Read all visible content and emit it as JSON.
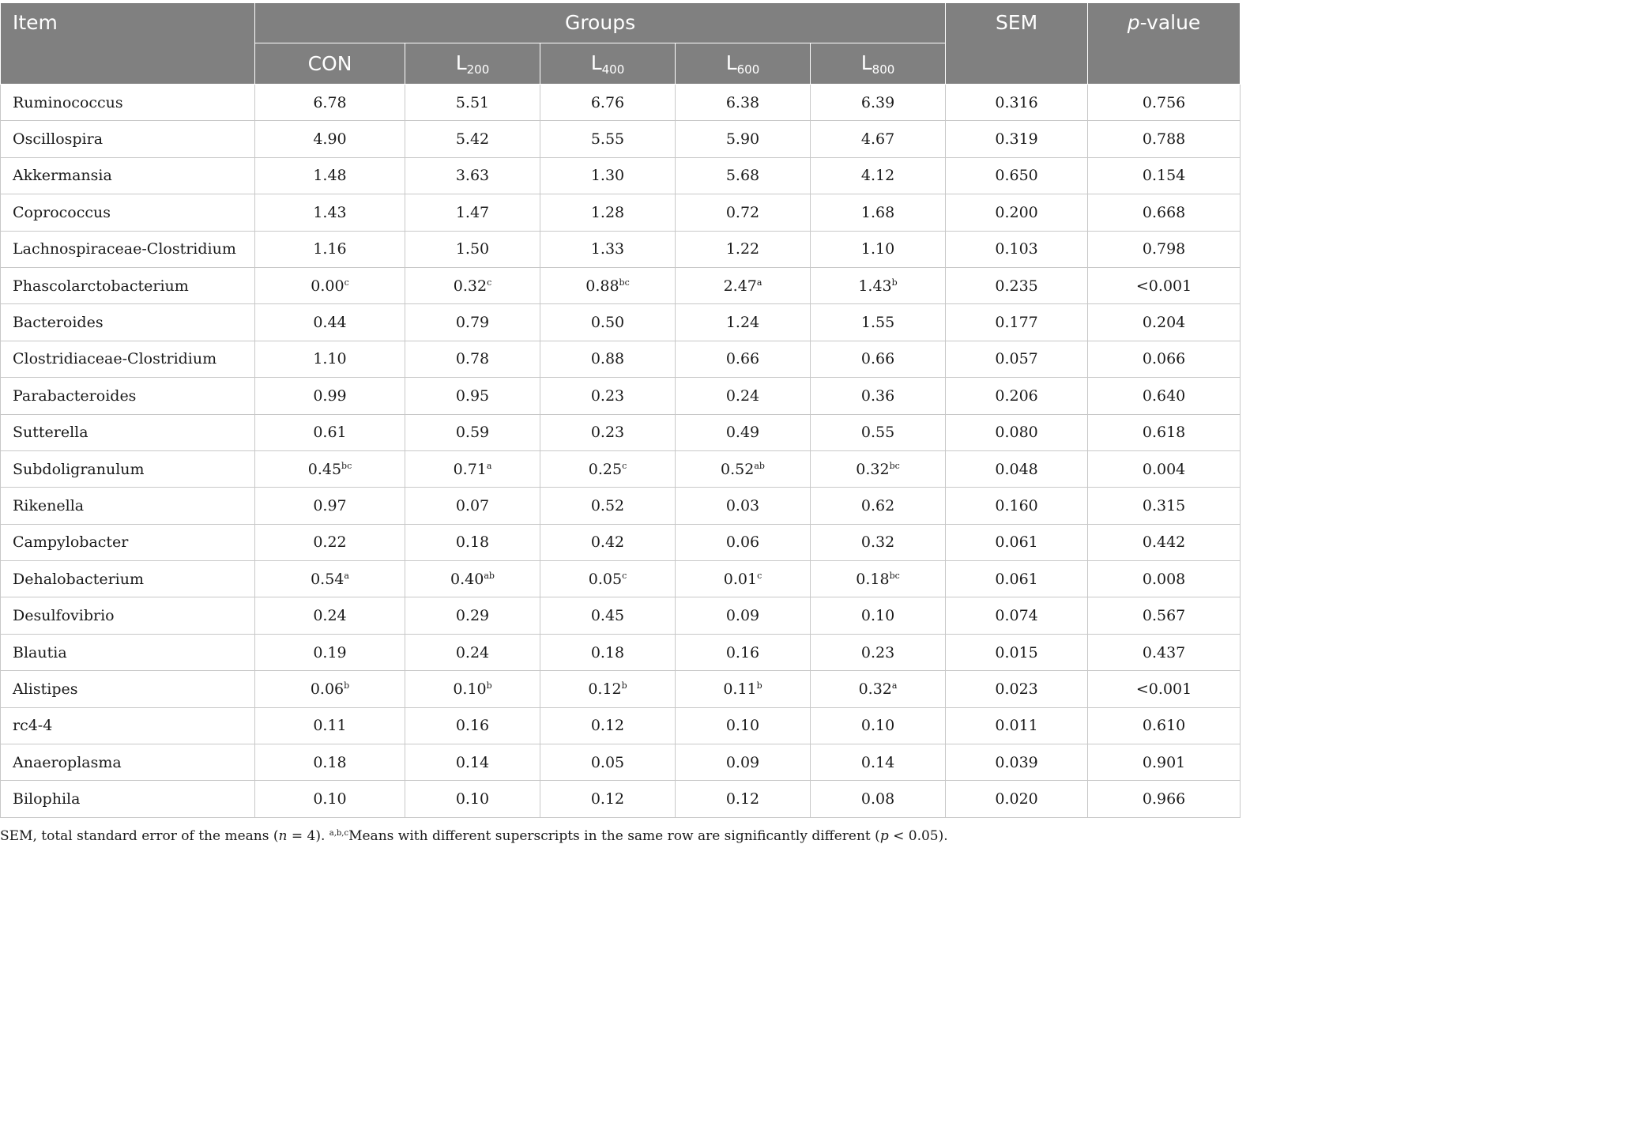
{
  "header": {
    "item": "Item",
    "groups": "Groups",
    "sem": "SEM",
    "pvalue_italic": "p",
    "pvalue_rest": "-value",
    "con": "CON",
    "subgroups": [
      {
        "base": "L",
        "sub": "200"
      },
      {
        "base": "L",
        "sub": "400"
      },
      {
        "base": "L",
        "sub": "600"
      },
      {
        "base": "L",
        "sub": "800"
      }
    ]
  },
  "rows": [
    {
      "item": "Ruminococcus",
      "vals": [
        [
          "6.78",
          ""
        ],
        [
          "5.51",
          ""
        ],
        [
          "6.76",
          ""
        ],
        [
          "6.38",
          ""
        ],
        [
          "6.39",
          ""
        ]
      ],
      "sem": "0.316",
      "p": "0.756"
    },
    {
      "item": "Oscillospira",
      "vals": [
        [
          "4.90",
          ""
        ],
        [
          "5.42",
          ""
        ],
        [
          "5.55",
          ""
        ],
        [
          "5.90",
          ""
        ],
        [
          "4.67",
          ""
        ]
      ],
      "sem": "0.319",
      "p": "0.788"
    },
    {
      "item": "Akkermansia",
      "vals": [
        [
          "1.48",
          ""
        ],
        [
          "3.63",
          ""
        ],
        [
          "1.30",
          ""
        ],
        [
          "5.68",
          ""
        ],
        [
          "4.12",
          ""
        ]
      ],
      "sem": "0.650",
      "p": "0.154"
    },
    {
      "item": "Coprococcus",
      "vals": [
        [
          "1.43",
          ""
        ],
        [
          "1.47",
          ""
        ],
        [
          "1.28",
          ""
        ],
        [
          "0.72",
          ""
        ],
        [
          "1.68",
          ""
        ]
      ],
      "sem": "0.200",
      "p": "0.668"
    },
    {
      "item": "Lachnospiraceae-Clostridium",
      "vals": [
        [
          "1.16",
          ""
        ],
        [
          "1.50",
          ""
        ],
        [
          "1.33",
          ""
        ],
        [
          "1.22",
          ""
        ],
        [
          "1.10",
          ""
        ]
      ],
      "sem": "0.103",
      "p": "0.798"
    },
    {
      "item": "Phascolarctobacterium",
      "vals": [
        [
          "0.00",
          "c"
        ],
        [
          "0.32",
          "c"
        ],
        [
          "0.88",
          "bc"
        ],
        [
          "2.47",
          "a"
        ],
        [
          "1.43",
          "b"
        ]
      ],
      "sem": "0.235",
      "p": "<0.001"
    },
    {
      "item": "Bacteroides",
      "vals": [
        [
          "0.44",
          ""
        ],
        [
          "0.79",
          ""
        ],
        [
          "0.50",
          ""
        ],
        [
          "1.24",
          ""
        ],
        [
          "1.55",
          ""
        ]
      ],
      "sem": "0.177",
      "p": "0.204"
    },
    {
      "item": "Clostridiaceae-Clostridium",
      "vals": [
        [
          "1.10",
          ""
        ],
        [
          "0.78",
          ""
        ],
        [
          "0.88",
          ""
        ],
        [
          "0.66",
          ""
        ],
        [
          "0.66",
          ""
        ]
      ],
      "sem": "0.057",
      "p": "0.066"
    },
    {
      "item": "Parabacteroides",
      "vals": [
        [
          "0.99",
          ""
        ],
        [
          "0.95",
          ""
        ],
        [
          "0.23",
          ""
        ],
        [
          "0.24",
          ""
        ],
        [
          "0.36",
          ""
        ]
      ],
      "sem": "0.206",
      "p": "0.640"
    },
    {
      "item": "Sutterella",
      "vals": [
        [
          "0.61",
          ""
        ],
        [
          "0.59",
          ""
        ],
        [
          "0.23",
          ""
        ],
        [
          "0.49",
          ""
        ],
        [
          "0.55",
          ""
        ]
      ],
      "sem": "0.080",
      "p": "0.618"
    },
    {
      "item": "Subdoligranulum",
      "vals": [
        [
          "0.45",
          "bc"
        ],
        [
          "0.71",
          "a"
        ],
        [
          "0.25",
          "c"
        ],
        [
          "0.52",
          "ab"
        ],
        [
          "0.32",
          "bc"
        ]
      ],
      "sem": "0.048",
      "p": "0.004"
    },
    {
      "item": "Rikenella",
      "vals": [
        [
          "0.97",
          ""
        ],
        [
          "0.07",
          ""
        ],
        [
          "0.52",
          ""
        ],
        [
          "0.03",
          ""
        ],
        [
          "0.62",
          ""
        ]
      ],
      "sem": "0.160",
      "p": "0.315"
    },
    {
      "item": "Campylobacter",
      "vals": [
        [
          "0.22",
          ""
        ],
        [
          "0.18",
          ""
        ],
        [
          "0.42",
          ""
        ],
        [
          "0.06",
          ""
        ],
        [
          "0.32",
          ""
        ]
      ],
      "sem": "0.061",
      "p": "0.442"
    },
    {
      "item": "Dehalobacterium",
      "vals": [
        [
          "0.54",
          "a"
        ],
        [
          "0.40",
          "ab"
        ],
        [
          "0.05",
          "c"
        ],
        [
          "0.01",
          "c"
        ],
        [
          "0.18",
          "bc"
        ]
      ],
      "sem": "0.061",
      "p": "0.008"
    },
    {
      "item": "Desulfovibrio",
      "vals": [
        [
          "0.24",
          ""
        ],
        [
          "0.29",
          ""
        ],
        [
          "0.45",
          ""
        ],
        [
          "0.09",
          ""
        ],
        [
          "0.10",
          ""
        ]
      ],
      "sem": "0.074",
      "p": "0.567"
    },
    {
      "item": "Blautia",
      "vals": [
        [
          "0.19",
          ""
        ],
        [
          "0.24",
          ""
        ],
        [
          "0.18",
          ""
        ],
        [
          "0.16",
          ""
        ],
        [
          "0.23",
          ""
        ]
      ],
      "sem": "0.015",
      "p": "0.437"
    },
    {
      "item": "Alistipes",
      "vals": [
        [
          "0.06",
          "b"
        ],
        [
          "0.10",
          "b"
        ],
        [
          "0.12",
          "b"
        ],
        [
          "0.11",
          "b"
        ],
        [
          "0.32",
          "a"
        ]
      ],
      "sem": "0.023",
      "p": "<0.001"
    },
    {
      "item": "rc4-4",
      "vals": [
        [
          "0.11",
          ""
        ],
        [
          "0.16",
          ""
        ],
        [
          "0.12",
          ""
        ],
        [
          "0.10",
          ""
        ],
        [
          "0.10",
          ""
        ]
      ],
      "sem": "0.011",
      "p": "0.610"
    },
    {
      "item": "Anaeroplasma",
      "vals": [
        [
          "0.18",
          ""
        ],
        [
          "0.14",
          ""
        ],
        [
          "0.05",
          ""
        ],
        [
          "0.09",
          ""
        ],
        [
          "0.14",
          ""
        ]
      ],
      "sem": "0.039",
      "p": "0.901"
    },
    {
      "item": "Bilophila",
      "vals": [
        [
          "0.10",
          ""
        ],
        [
          "0.10",
          ""
        ],
        [
          "0.12",
          ""
        ],
        [
          "0.12",
          ""
        ],
        [
          "0.08",
          ""
        ]
      ],
      "sem": "0.020",
      "p": "0.966"
    }
  ],
  "footnote": {
    "part1": "SEM, total standard error of the means (",
    "n_italic": "n",
    "part2": " = 4). ",
    "sup": "a,b,c",
    "part3": "Means with different superscripts in the same row are significantly different (",
    "p_italic": "p",
    "part4": " < 0.05)."
  }
}
